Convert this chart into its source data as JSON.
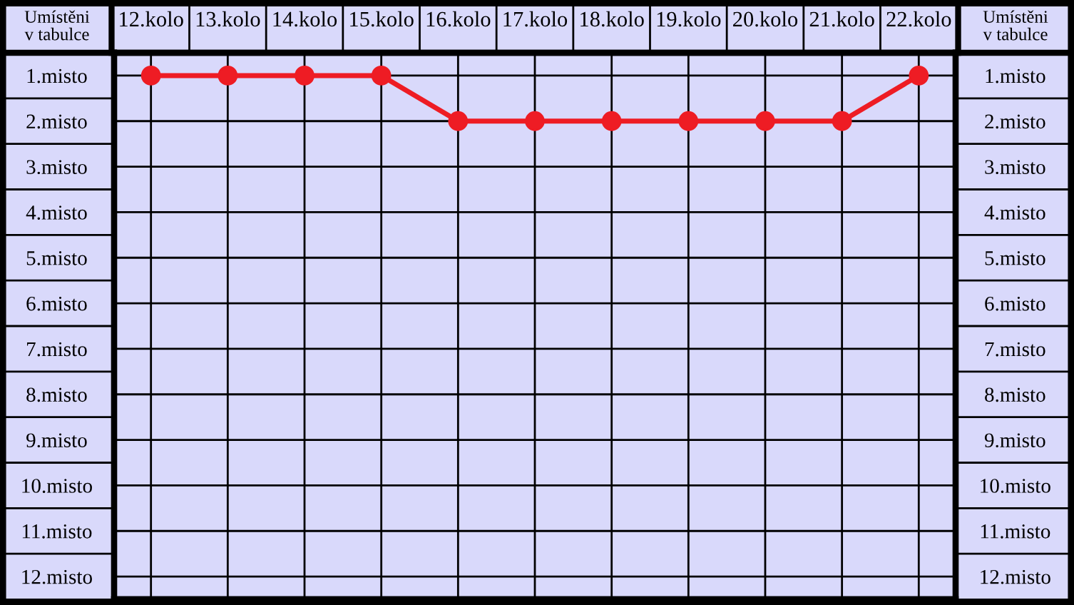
{
  "chart_data": {
    "type": "line",
    "ylabel": "Umístěni\nv tabulce",
    "y2label": "Umístěni\nv tabulce",
    "categories": [
      "12.kolo",
      "13.kolo",
      "14.kolo",
      "15.kolo",
      "16.kolo",
      "17.kolo",
      "18.kolo",
      "19.kolo",
      "20.kolo",
      "21.kolo",
      "22.kolo"
    ],
    "series": [
      {
        "color": "#ee1c24",
        "values": [
          1,
          1,
          1,
          1,
          2,
          2,
          2,
          2,
          2,
          2,
          1
        ]
      }
    ],
    "ylim": [
      12.5,
      0.5
    ],
    "yticks": [
      {
        "value": 1,
        "label": "1.misto"
      },
      {
        "value": 2,
        "label": "2.misto"
      },
      {
        "value": 3,
        "label": "3.misto"
      },
      {
        "value": 4,
        "label": "4.misto"
      },
      {
        "value": 5,
        "label": "5.misto"
      },
      {
        "value": 6,
        "label": "6.misto"
      },
      {
        "value": 7,
        "label": "7.misto"
      },
      {
        "value": 8,
        "label": "8.misto"
      },
      {
        "value": 9,
        "label": "9.misto"
      },
      {
        "value": 10,
        "label": "10.misto"
      },
      {
        "value": 11,
        "label": "11.misto"
      },
      {
        "value": 12,
        "label": "12.misto"
      }
    ],
    "y2lim": [
      12.5,
      0.5
    ],
    "y2ticks": [
      {
        "value": 1,
        "label": "1.misto"
      },
      {
        "value": 2,
        "label": "2.misto"
      },
      {
        "value": 3,
        "label": "3.misto"
      },
      {
        "value": 4,
        "label": "4.misto"
      },
      {
        "value": 5,
        "label": "5.misto"
      },
      {
        "value": 6,
        "label": "6.misto"
      },
      {
        "value": 7,
        "label": "7.misto"
      },
      {
        "value": 8,
        "label": "8.misto"
      },
      {
        "value": 9,
        "label": "9.misto"
      },
      {
        "value": 10,
        "label": "10.misto"
      },
      {
        "value": 11,
        "label": "11.misto"
      },
      {
        "value": 12,
        "label": "12.misto"
      }
    ],
    "grid": true,
    "marker": "circle",
    "line_style": "solid"
  }
}
